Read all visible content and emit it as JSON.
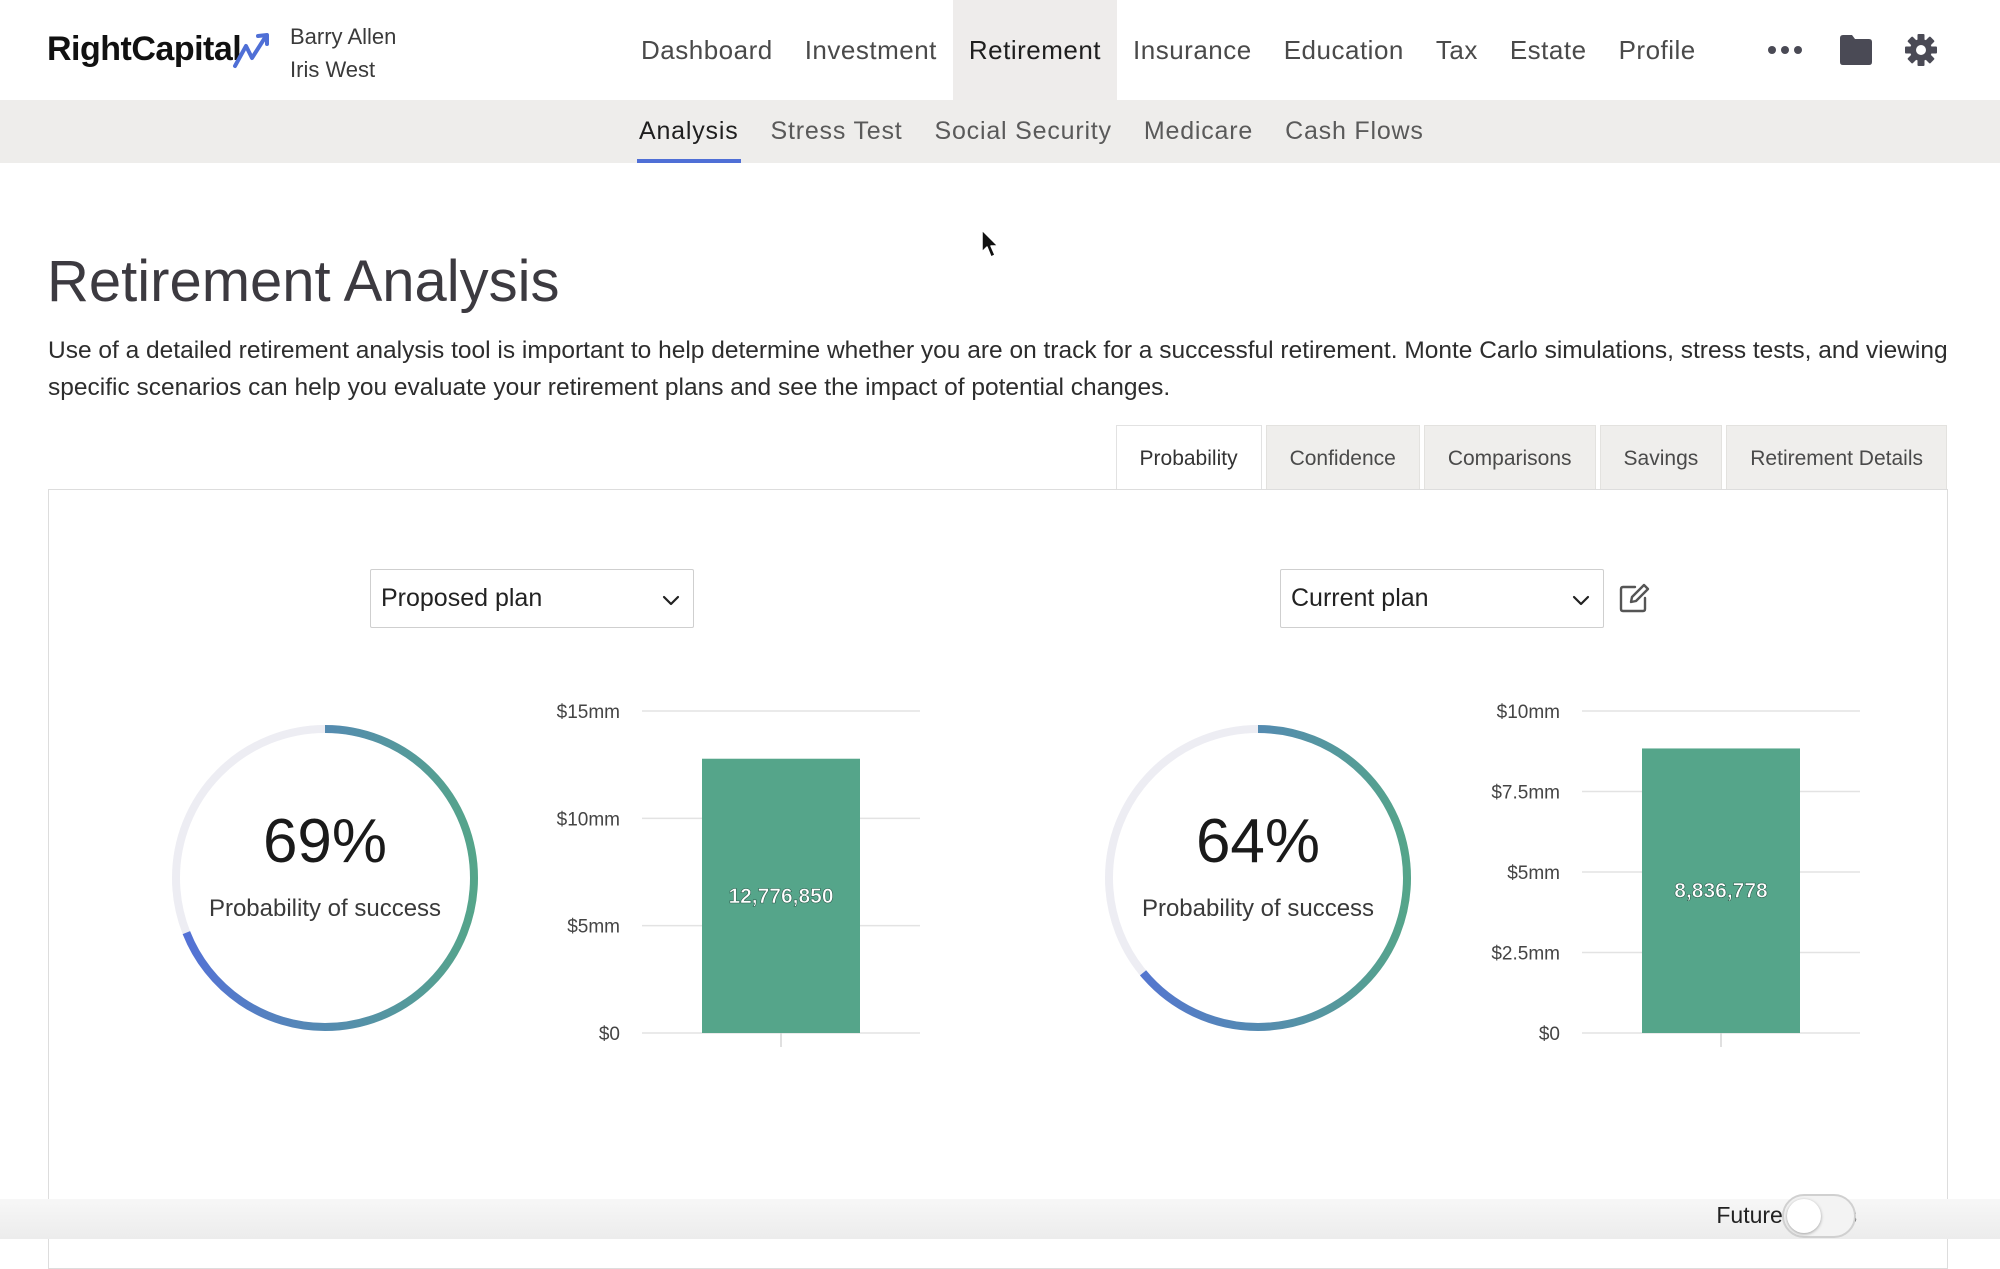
{
  "brand": {
    "name": "RightCapital",
    "accent": "#4f6fd6"
  },
  "clients": [
    "Barry Allen",
    "Iris West"
  ],
  "main_nav": [
    {
      "label": "Dashboard",
      "active": false
    },
    {
      "label": "Investment",
      "active": false
    },
    {
      "label": "Retirement",
      "active": true
    },
    {
      "label": "Insurance",
      "active": false
    },
    {
      "label": "Education",
      "active": false
    },
    {
      "label": "Tax",
      "active": false
    },
    {
      "label": "Estate",
      "active": false
    },
    {
      "label": "Profile",
      "active": false
    }
  ],
  "top_icons": [
    "more-icon",
    "folder-icon",
    "gear-icon"
  ],
  "sub_nav": [
    {
      "label": "Analysis",
      "active": true
    },
    {
      "label": "Stress Test",
      "active": false
    },
    {
      "label": "Social Security",
      "active": false
    },
    {
      "label": "Medicare",
      "active": false
    },
    {
      "label": "Cash Flows",
      "active": false
    }
  ],
  "page": {
    "title": "Retirement Analysis",
    "intro": "Use of a detailed retirement analysis tool is important to help determine whether you are on track for a successful retirement. Monte Carlo simulations, stress tests, and viewing specific scenarios can help you evaluate your retirement plans and see the impact of potential changes."
  },
  "tabs": [
    {
      "label": "Probability",
      "active": true
    },
    {
      "label": "Confidence",
      "active": false
    },
    {
      "label": "Comparisons",
      "active": false
    },
    {
      "label": "Savings",
      "active": false
    },
    {
      "label": "Retirement Details",
      "active": false
    }
  ],
  "plans": [
    {
      "select_value": "Proposed plan",
      "probability_text": "69%",
      "probability": 0.69,
      "probability_label": "Probability of success"
    },
    {
      "select_value": "Current plan",
      "probability_text": "64%",
      "probability": 0.64,
      "probability_label": "Probability of success"
    }
  ],
  "chart_data": [
    {
      "type": "bar",
      "categories": [
        ""
      ],
      "values": [
        12776850
      ],
      "data_labels": [
        "12,776,850"
      ],
      "yticks": [
        "$0",
        "$5mm",
        "$10mm",
        "$15mm"
      ],
      "ytick_values": [
        0,
        5000000,
        10000000,
        15000000
      ],
      "ylim": [
        0,
        15000000
      ],
      "grid": true,
      "color": "#55a58a"
    },
    {
      "type": "bar",
      "categories": [
        ""
      ],
      "values": [
        8836778
      ],
      "data_labels": [
        "8,836,778"
      ],
      "yticks": [
        "$0",
        "$2.5mm",
        "$5mm",
        "$7.5mm",
        "$10mm"
      ],
      "ytick_values": [
        0,
        2500000,
        5000000,
        7500000,
        10000000
      ],
      "ylim": [
        0,
        10000000
      ],
      "grid": true,
      "color": "#55a58a"
    }
  ],
  "gauge_colors": {
    "start": "#5470d8",
    "end": "#55a58a",
    "track": "#ededf3"
  },
  "footer": {
    "toggle_label": "Future dollars",
    "toggle_on": false
  }
}
